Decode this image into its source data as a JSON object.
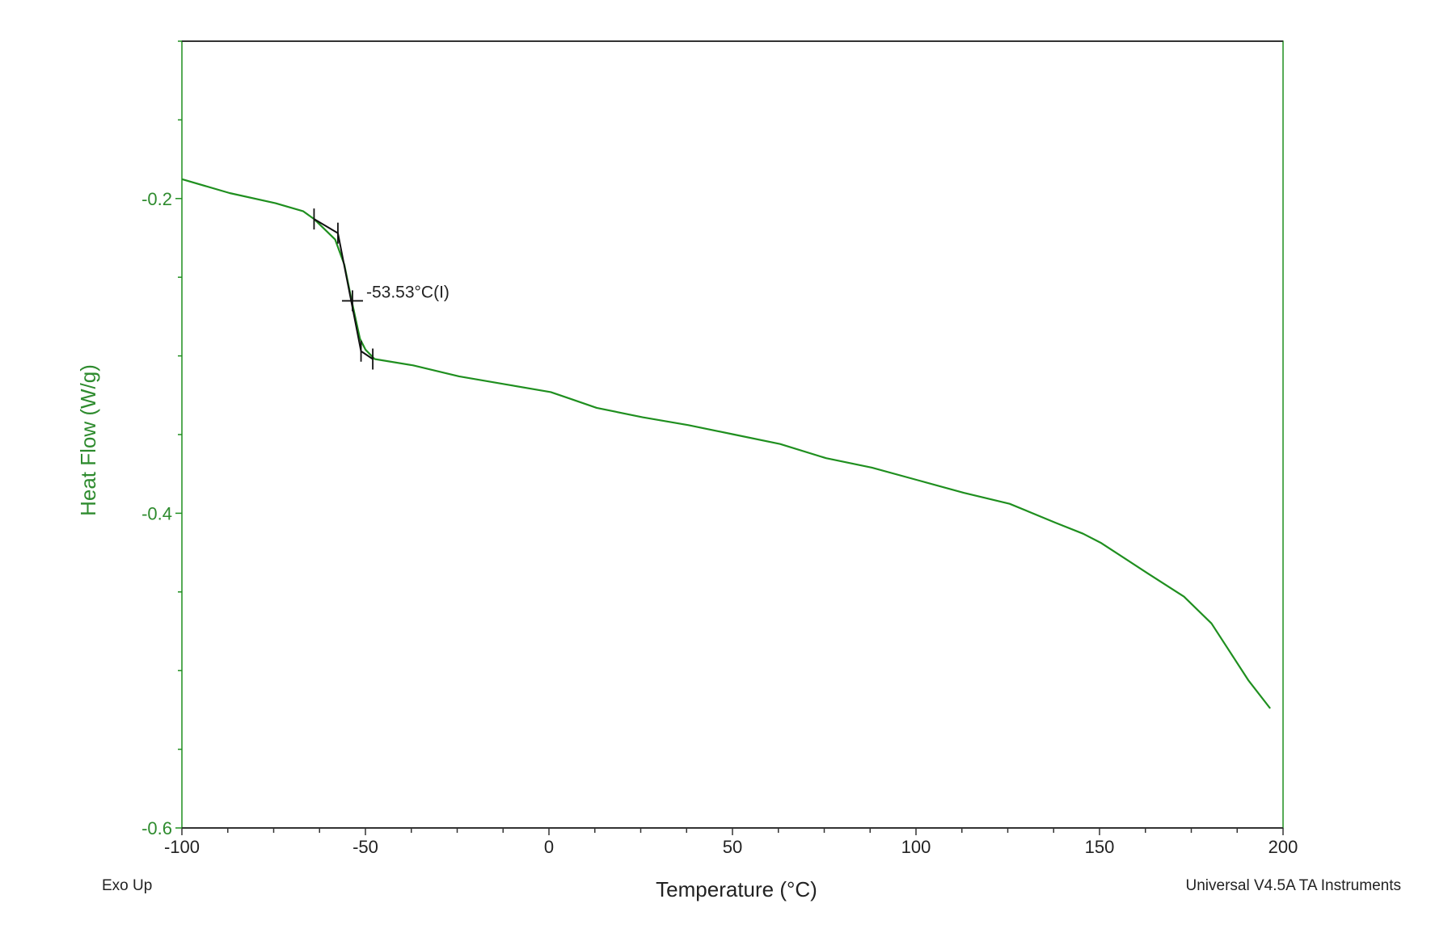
{
  "chart_data": {
    "type": "line",
    "title": "",
    "xlabel": "Temperature (°C)",
    "ylabel": "Heat Flow (W/g)",
    "xlim": [
      -100,
      200
    ],
    "ylim": [
      -0.6,
      -0.1
    ],
    "xticks": [
      -100,
      -50,
      0,
      50,
      100,
      150,
      200
    ],
    "xtick_labels": [
      "-100",
      "-50",
      "0",
      "50",
      "100",
      "150",
      "200"
    ],
    "yticks": [
      -0.2,
      -0.4,
      -0.6
    ],
    "ytick_labels": [
      "-0.2",
      "-0.4",
      "-0.6"
    ],
    "grid": false,
    "series": [
      {
        "name": "Heat Flow",
        "color": "#1f8f1f",
        "x": [
          -100,
          -87,
          -74.5,
          -67,
          -64,
          -58.25,
          -55.75,
          -53.75,
          -51.5,
          -50,
          -47.5,
          -37,
          -24.5,
          -12,
          0.5,
          5.5,
          13,
          25.5,
          38,
          50.5,
          63,
          75.5,
          88,
          100.5,
          113,
          125.5,
          138,
          145.5,
          150.5,
          163,
          173,
          180.5,
          185.5,
          190.5,
          196.5
        ],
        "y": [
          -0.1877,
          -0.1965,
          -0.203,
          -0.208,
          -0.213,
          -0.226,
          -0.242,
          -0.265,
          -0.289,
          -0.296,
          -0.302,
          -0.306,
          -0.313,
          -0.318,
          -0.323,
          -0.327,
          -0.333,
          -0.339,
          -0.344,
          -0.35,
          -0.356,
          -0.365,
          -0.371,
          -0.379,
          -0.387,
          -0.394,
          -0.406,
          -0.413,
          -0.419,
          -0.438,
          -0.453,
          -0.47,
          -0.488,
          -0.506,
          -0.524
        ]
      }
    ],
    "glass_transition": {
      "label": "-53.53°C(I)",
      "inflection": {
        "x": -53.53,
        "y": -0.265
      },
      "tangent_x": [
        -64,
        -57.5,
        -51.2,
        -48
      ],
      "tangent_y": [
        -0.213,
        -0.222,
        -0.297,
        -0.302
      ]
    },
    "footer_left": "Exo Up",
    "footer_right": "Universal V4.5A TA Instruments"
  }
}
